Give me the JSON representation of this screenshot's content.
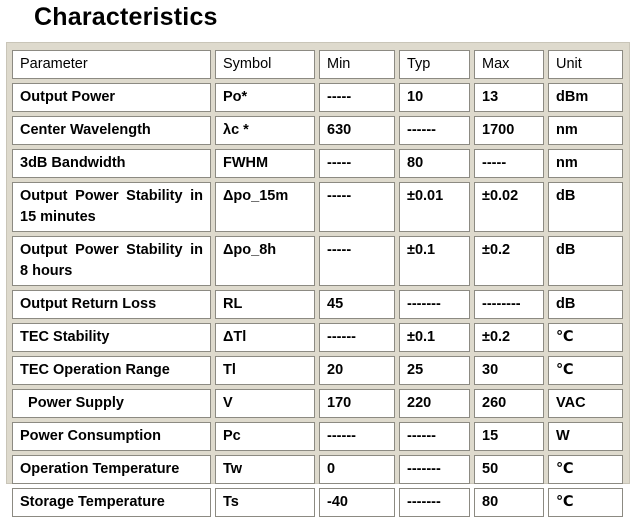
{
  "title": "Characteristics",
  "table": {
    "headers": [
      "Parameter",
      "Symbol",
      "Min",
      "Typ",
      "Max",
      "Unit"
    ],
    "rows": [
      {
        "parameter": "Output Power",
        "symbol": "Po*",
        "min": "-----",
        "typ": "10",
        "max": "13",
        "unit": "dBm"
      },
      {
        "parameter": "Center Wavelength",
        "symbol": "λc *",
        "min": "630",
        "typ": "------",
        "max": "1700",
        "unit": "nm"
      },
      {
        "parameter": "3dB Bandwidth",
        "symbol": "FWHM",
        "min": "-----",
        "typ": "80",
        "max": "-----",
        "unit": "nm"
      },
      {
        "parameter": "Output Power Stability in 15 minutes",
        "symbol": "Δpo_15m",
        "min": "-----",
        "typ": "±0.01",
        "max": "±0.02",
        "unit": "dB"
      },
      {
        "parameter": "Output Power Stability in 8 hours",
        "symbol": "Δpo_8h",
        "min": "-----",
        "typ": "±0.1",
        "max": "±0.2",
        "unit": "dB"
      },
      {
        "parameter": "Output Return Loss",
        "symbol": "RL",
        "min": "45",
        "typ": "-------",
        "max": "--------",
        "unit": "dB"
      },
      {
        "parameter": "TEC Stability",
        "symbol": "ΔTl",
        "min": "------",
        "typ": "±0.1",
        "max": "±0.2",
        "unit": "℃"
      },
      {
        "parameter": "TEC Operation Range",
        "symbol": "Tl",
        "min": "20",
        "typ": "25",
        "max": "30",
        "unit": "℃"
      },
      {
        "parameter": "  Power Supply",
        "symbol": "V",
        "min": "170",
        "typ": "220",
        "max": "260",
        "unit": "VAC"
      },
      {
        "parameter": "Power Consumption",
        "symbol": "Pc",
        "min": "------",
        "typ": "------",
        "max": "15",
        "unit": "W"
      },
      {
        "parameter": "Operation Temperature",
        "symbol": "Tw",
        "min": "0",
        "typ": "-------",
        "max": "50",
        "unit": "℃"
      },
      {
        "parameter": "Storage Temperature",
        "symbol": "Ts",
        "min": "-40",
        "typ": "-------",
        "max": "80",
        "unit": "℃"
      }
    ]
  }
}
